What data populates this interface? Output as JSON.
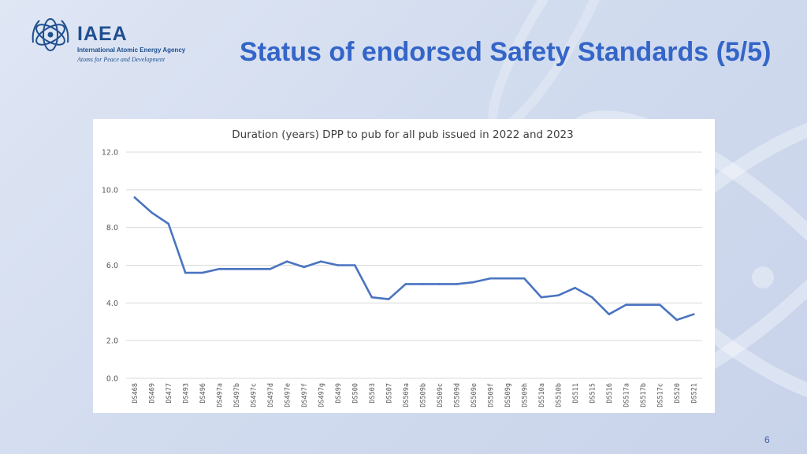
{
  "slide": {
    "title": "Status of endorsed Safety Standards (5/5)",
    "page_number": "6"
  },
  "logo": {
    "name": "IAEA",
    "subtitle": "International Atomic Energy Agency",
    "motto": "Atoms for Peace and Development"
  },
  "colors": {
    "title": "#3465c8",
    "series": "#4a74c0",
    "grid": "#d9d9d9",
    "brand": "#1e4f8f"
  },
  "chart_data": {
    "type": "line",
    "title": "Duration (years) DPP to pub for all pub issued in 2022 and 2023",
    "xlabel": "",
    "ylabel": "",
    "ylim": [
      0,
      12
    ],
    "yticks": [
      "0.0",
      "2.0",
      "4.0",
      "6.0",
      "8.0",
      "10.0",
      "12.0"
    ],
    "grid": true,
    "legend": "none",
    "categories": [
      "DS468",
      "DS469",
      "DS477",
      "DS493",
      "DS496",
      "DS497a",
      "DS497b",
      "DS497c",
      "DS497d",
      "DS497e",
      "DS497f",
      "DS497g",
      "DS499",
      "DS500",
      "DS503",
      "DS507",
      "DS509a",
      "DS509b",
      "DS509c",
      "DS509d",
      "DS509e",
      "DS509f",
      "DS509g",
      "DS509h",
      "DS510a",
      "DS510b",
      "DS511",
      "DS515",
      "DS516",
      "DS517a",
      "DS517b",
      "DS517c",
      "DS520",
      "DS521"
    ],
    "values": [
      9.6,
      8.8,
      8.2,
      5.6,
      5.6,
      5.8,
      5.8,
      5.8,
      5.8,
      6.2,
      5.9,
      6.2,
      6.0,
      6.0,
      4.3,
      4.2,
      5.0,
      5.0,
      5.0,
      5.0,
      5.1,
      5.3,
      5.3,
      5.3,
      4.3,
      4.4,
      4.8,
      4.3,
      3.4,
      3.9,
      3.9,
      3.9,
      3.1,
      3.4
    ]
  }
}
